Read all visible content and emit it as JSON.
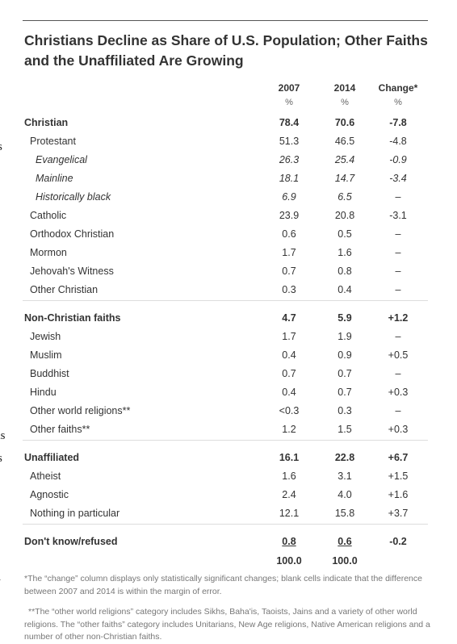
{
  "title": "Christians Decline as Share of U.S. Population; Other Faiths and the Unaffiliated Are Growing",
  "table": {
    "columns": [
      "2007",
      "2014",
      "Change*"
    ],
    "units": [
      "%",
      "%",
      "%"
    ],
    "rows": [
      {
        "level": "group",
        "cells": [
          "Christian",
          "78.4",
          "70.6",
          "-7.8"
        ]
      },
      {
        "level": "item",
        "cells": [
          "Protestant",
          "51.3",
          "46.5",
          "-4.8"
        ]
      },
      {
        "level": "subitem",
        "cells": [
          "Evangelical",
          "26.3",
          "25.4",
          "-0.9"
        ]
      },
      {
        "level": "subitem",
        "cells": [
          "Mainline",
          "18.1",
          "14.7",
          "-3.4"
        ]
      },
      {
        "level": "subitem",
        "cells": [
          "Historically black",
          "6.9",
          "6.5",
          "–"
        ]
      },
      {
        "level": "item",
        "cells": [
          "Catholic",
          "23.9",
          "20.8",
          "-3.1"
        ]
      },
      {
        "level": "item",
        "cells": [
          "Orthodox Christian",
          "0.6",
          "0.5",
          "–"
        ]
      },
      {
        "level": "item",
        "cells": [
          "Mormon",
          "1.7",
          "1.6",
          "–"
        ]
      },
      {
        "level": "item",
        "cells": [
          "Jehovah's Witness",
          "0.7",
          "0.8",
          "–"
        ]
      },
      {
        "level": "item",
        "cells": [
          "Other Christian",
          "0.3",
          "0.4",
          "–"
        ]
      },
      {
        "level": "group",
        "cells": [
          "Non-Christian faiths",
          "4.7",
          "5.9",
          "+1.2"
        ]
      },
      {
        "level": "item",
        "cells": [
          "Jewish",
          "1.7",
          "1.9",
          "–"
        ]
      },
      {
        "level": "item",
        "cells": [
          "Muslim",
          "0.4",
          "0.9",
          "+0.5"
        ]
      },
      {
        "level": "item",
        "cells": [
          "Buddhist",
          "0.7",
          "0.7",
          "–"
        ]
      },
      {
        "level": "item",
        "cells": [
          "Hindu",
          "0.4",
          "0.7",
          "+0.3"
        ]
      },
      {
        "level": "item",
        "cells": [
          "Other world religions**",
          "<0.3",
          "0.3",
          "–"
        ]
      },
      {
        "level": "item",
        "cells": [
          "Other faiths**",
          "1.2",
          "1.5",
          "+0.3"
        ]
      },
      {
        "level": "group",
        "cells": [
          "Unaffiliated",
          "16.1",
          "22.8",
          "+6.7"
        ]
      },
      {
        "level": "item",
        "cells": [
          "Atheist",
          "1.6",
          "3.1",
          "+1.5"
        ]
      },
      {
        "level": "item",
        "cells": [
          "Agnostic",
          "2.4",
          "4.0",
          "+1.6"
        ]
      },
      {
        "level": "item",
        "cells": [
          "Nothing in particular",
          "12.1",
          "15.8",
          "+3.7"
        ]
      },
      {
        "level": "group",
        "underline": true,
        "cells": [
          "Don't know/refused",
          "0.8",
          "0.6",
          "-0.2"
        ]
      }
    ],
    "totals": [
      "100.0",
      "100.0"
    ]
  },
  "footnotes": [
    "*The “change” column displays only statistically significant changes; blank cells indicate that the difference between 2007 and 2014 is within the margin of error.",
    "**The “other world religions” category includes Sikhs, Baha'is, Taoists, Jains and a variety of other world religions. The “other faiths” category includes Unitarians, New Age religions, Native American religions and a number of other non-Christian faiths."
  ],
  "margin_fragments": [
    "s",
    "as",
    "s",
    "l"
  ]
}
